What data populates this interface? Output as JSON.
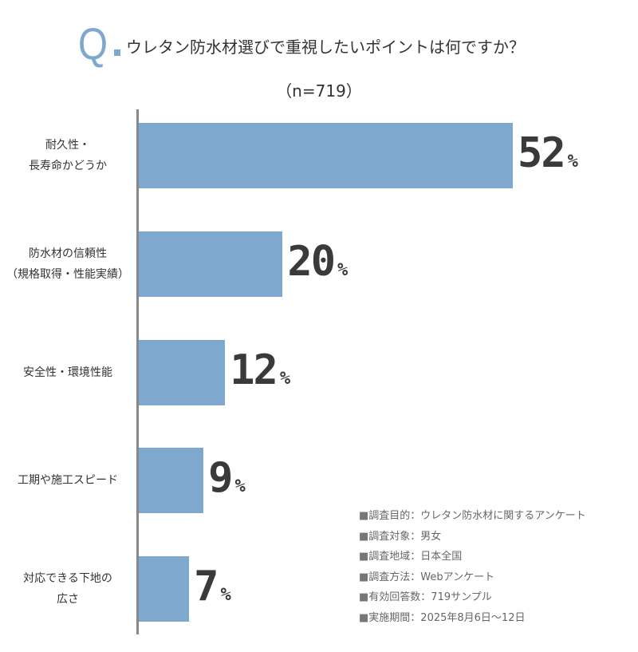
{
  "header": {
    "q_mark": "Q",
    "title": "ウレタン防水材選びで重視したいポイントは何ですか？",
    "sample": "（n=719）"
  },
  "chart_data": {
    "type": "bar",
    "orientation": "horizontal",
    "title": "ウレタン防水材選びで重視したいポイントは何ですか？",
    "categories": [
      [
        "耐久性・",
        "長寿命かどうか"
      ],
      [
        "防水材の信頼性",
        "（規格取得・性能実績）"
      ],
      [
        "安全性・環境性能"
      ],
      [
        "工期や施工スピード"
      ],
      [
        "対応できる下地の",
        "広さ"
      ]
    ],
    "values": [
      52,
      20,
      12,
      9,
      7
    ],
    "unit": "%",
    "bar_color": "#7fa8cf"
  },
  "notes": [
    "調査目的：ウレタン防水材に関するアンケート",
    "調査対象：男女",
    "調査地域：日本全国",
    "調査方法：Webアンケート",
    "有効回答数：719サンプル",
    "実施期間：2025年8月6日〜12日"
  ],
  "note_bullet": "■"
}
